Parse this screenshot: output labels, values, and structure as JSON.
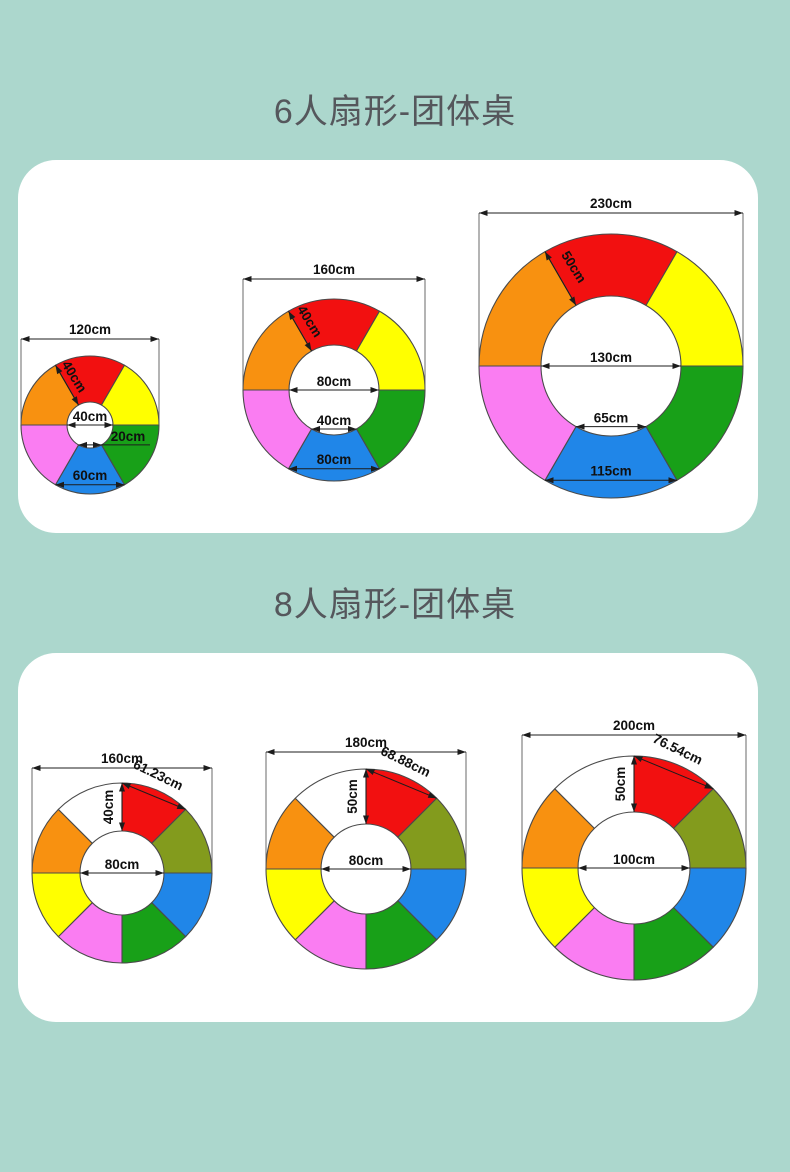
{
  "page": {
    "background": "#acd7cd",
    "title_color": "#55575c",
    "panel_color": "#ffffff",
    "outline_color": "#4a4a4a",
    "dimension_color": "#1c1c1c"
  },
  "sections": [
    {
      "id": "six",
      "title": "6人扇形-团体桌",
      "seats": 6,
      "segment_colors": [
        "#f21010",
        "#ffff00",
        "#18a018",
        "#2086e8",
        "#fa7df2",
        "#f89110"
      ],
      "diagrams": [
        {
          "top_width": "120cm",
          "seat_depth": "40cm",
          "inner_diameter": "40cm",
          "inner_chord": "20cm",
          "outer_chord": "60cm"
        },
        {
          "top_width": "160cm",
          "seat_depth": "40cm",
          "inner_diameter": "80cm",
          "inner_chord": "40cm",
          "outer_chord": "80cm"
        },
        {
          "top_width": "230cm",
          "seat_depth": "50cm",
          "inner_diameter": "130cm",
          "inner_chord": "65cm",
          "outer_chord": "115cm"
        }
      ]
    },
    {
      "id": "eight",
      "title": "8人扇形-团体桌",
      "seats": 8,
      "segment_colors": [
        "#f21010",
        "#839b1d",
        "#2086e8",
        "#18a018",
        "#fa7df2",
        "#ffff00",
        "#f89110",
        "#ffffff"
      ],
      "diagrams": [
        {
          "top_width": "160cm",
          "seat_depth": "40cm",
          "inner_diameter": "80cm",
          "seat_chord": "61.23cm"
        },
        {
          "top_width": "180cm",
          "seat_depth": "50cm",
          "inner_diameter": "80cm",
          "seat_chord": "68.88cm"
        },
        {
          "top_width": "200cm",
          "seat_depth": "50cm",
          "inner_diameter": "100cm",
          "seat_chord": "76.54cm"
        }
      ]
    }
  ]
}
